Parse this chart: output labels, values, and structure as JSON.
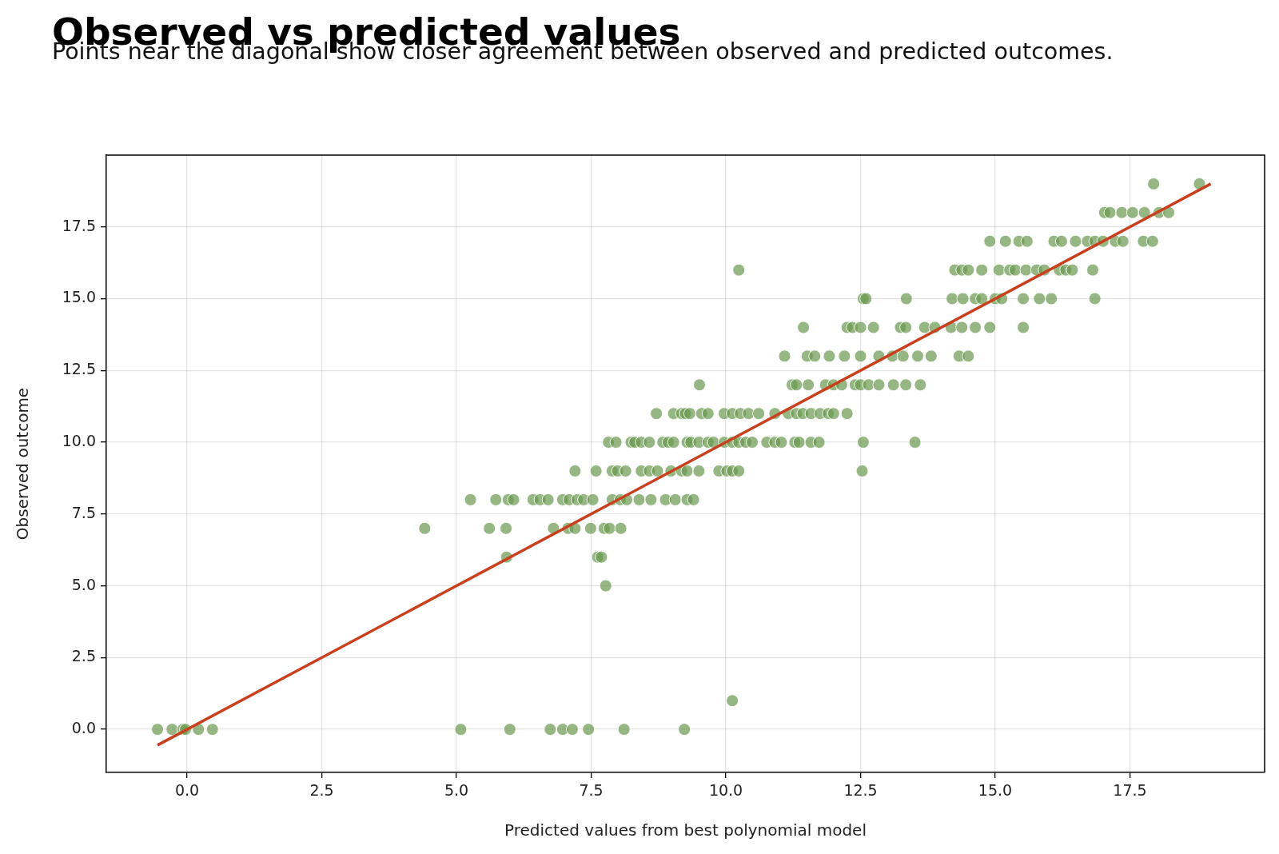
{
  "chart_data": {
    "type": "scatter",
    "title": "Observed vs predicted values",
    "subtitle": "Points near the diagonal show closer agreement between observed and predicted outcomes.",
    "xlabel": "Predicted values from best polynomial model",
    "ylabel": "Observed outcome",
    "xlim": [
      -1.5,
      20.0
    ],
    "ylim": [
      -1.5,
      20.0
    ],
    "xticks": [
      {
        "value": 0,
        "label": "0.0"
      },
      {
        "value": 2.5,
        "label": "2.5"
      },
      {
        "value": 5,
        "label": "5.0"
      },
      {
        "value": 7.5,
        "label": "7.5"
      },
      {
        "value": 10,
        "label": "10.0"
      },
      {
        "value": 12.5,
        "label": "12.5"
      },
      {
        "value": 15,
        "label": "15.0"
      },
      {
        "value": 17.5,
        "label": "17.5"
      }
    ],
    "yticks": [
      {
        "value": 0,
        "label": "0.0"
      },
      {
        "value": 2.5,
        "label": "2.5"
      },
      {
        "value": 5,
        "label": "5.0"
      },
      {
        "value": 7.5,
        "label": "7.5"
      },
      {
        "value": 10,
        "label": "10.0"
      },
      {
        "value": 12.5,
        "label": "12.5"
      },
      {
        "value": 15,
        "label": "15.0"
      },
      {
        "value": 17.5,
        "label": "17.5"
      }
    ],
    "grid": true,
    "legend": false,
    "series": [
      {
        "marker": "circle",
        "color": "#6a994e",
        "x": [
          -0.55,
          -0.28,
          -0.08,
          -0.03,
          0.21,
          0.47,
          5.08,
          5.99,
          6.74,
          6.97,
          7.15,
          7.45,
          8.11,
          9.23,
          10.12,
          7.77,
          5.93,
          7.62,
          7.69,
          4.41,
          5.61,
          5.92,
          6.8,
          7.07,
          7.2,
          7.49,
          7.74,
          7.84,
          8.05,
          5.26,
          5.73,
          5.96,
          6.06,
          6.42,
          6.55,
          6.7,
          6.97,
          7.09,
          7.24,
          7.36,
          7.53,
          7.89,
          8.04,
          8.16,
          8.39,
          8.61,
          8.88,
          9.06,
          9.28,
          9.4,
          7.2,
          7.59,
          7.89,
          7.99,
          8.14,
          8.43,
          8.58,
          8.73,
          8.98,
          9.18,
          9.28,
          9.5,
          9.87,
          10.02,
          10.12,
          10.24,
          12.53,
          7.82,
          7.96,
          8.24,
          8.31,
          8.43,
          8.58,
          8.83,
          8.93,
          9.03,
          9.28,
          9.35,
          9.5,
          9.67,
          9.77,
          9.97,
          10.12,
          10.24,
          10.37,
          10.49,
          10.76,
          10.91,
          11.03,
          11.28,
          11.36,
          11.58,
          11.73,
          12.55,
          13.51,
          8.71,
          9.03,
          9.18,
          9.25,
          9.33,
          9.55,
          9.67,
          9.97,
          10.12,
          10.27,
          10.42,
          10.61,
          10.91,
          11.16,
          11.31,
          11.43,
          11.58,
          11.75,
          11.9,
          12.0,
          12.25,
          9.51,
          11.23,
          11.31,
          11.53,
          11.85,
          12.0,
          12.15,
          12.4,
          12.5,
          12.65,
          12.84,
          13.11,
          13.34,
          13.61,
          11.09,
          11.51,
          11.65,
          11.92,
          12.2,
          12.5,
          12.84,
          13.09,
          13.29,
          13.56,
          13.81,
          14.33,
          14.5,
          11.44,
          12.25,
          12.35,
          12.5,
          12.74,
          13.24,
          13.34,
          13.69,
          13.88,
          14.18,
          14.38,
          14.63,
          14.9,
          15.52,
          12.55,
          12.6,
          13.35,
          14.2,
          14.4,
          14.63,
          14.75,
          15.0,
          15.12,
          15.52,
          15.82,
          16.04,
          16.85,
          10.24,
          14.25,
          14.38,
          14.5,
          14.75,
          15.07,
          15.27,
          15.37,
          15.57,
          15.77,
          15.91,
          16.19,
          16.31,
          16.43,
          16.81,
          14.9,
          15.19,
          15.44,
          15.59,
          16.09,
          16.23,
          16.49,
          16.71,
          16.85,
          17.0,
          17.23,
          17.37,
          17.75,
          17.92,
          17.03,
          17.13,
          17.35,
          17.55,
          17.77,
          18.04,
          18.22,
          17.94,
          18.79
        ],
        "values": [
          0,
          0,
          0,
          0,
          0,
          0,
          0,
          0,
          0,
          0,
          0,
          0,
          0,
          0,
          1,
          5,
          6,
          6,
          6,
          7,
          7,
          7,
          7,
          7,
          7,
          7,
          7,
          7,
          7,
          8,
          8,
          8,
          8,
          8,
          8,
          8,
          8,
          8,
          8,
          8,
          8,
          8,
          8,
          8,
          8,
          8,
          8,
          8,
          8,
          8,
          9,
          9,
          9,
          9,
          9,
          9,
          9,
          9,
          9,
          9,
          9,
          9,
          9,
          9,
          9,
          9,
          9,
          10,
          10,
          10,
          10,
          10,
          10,
          10,
          10,
          10,
          10,
          10,
          10,
          10,
          10,
          10,
          10,
          10,
          10,
          10,
          10,
          10,
          10,
          10,
          10,
          10,
          10,
          10,
          10,
          11,
          11,
          11,
          11,
          11,
          11,
          11,
          11,
          11,
          11,
          11,
          11,
          11,
          11,
          11,
          11,
          11,
          11,
          11,
          11,
          11,
          12,
          12,
          12,
          12,
          12,
          12,
          12,
          12,
          12,
          12,
          12,
          12,
          12,
          12,
          13,
          13,
          13,
          13,
          13,
          13,
          13,
          13,
          13,
          13,
          13,
          13,
          13,
          14,
          14,
          14,
          14,
          14,
          14,
          14,
          14,
          14,
          14,
          14,
          14,
          14,
          14,
          15,
          15,
          15,
          15,
          15,
          15,
          15,
          15,
          15,
          15,
          15,
          15,
          15,
          16,
          16,
          16,
          16,
          16,
          16,
          16,
          16,
          16,
          16,
          16,
          16,
          16,
          16,
          16,
          17,
          17,
          17,
          17,
          17,
          17,
          17,
          17,
          17,
          17,
          17,
          17,
          17,
          17,
          18,
          18,
          18,
          18,
          18,
          18,
          18,
          19,
          19
        ]
      },
      {
        "type": "line",
        "marker": "none",
        "color": "#c8401e",
        "x": [
          -0.55,
          19.0
        ],
        "values": [
          -0.55,
          19.0
        ]
      }
    ]
  }
}
